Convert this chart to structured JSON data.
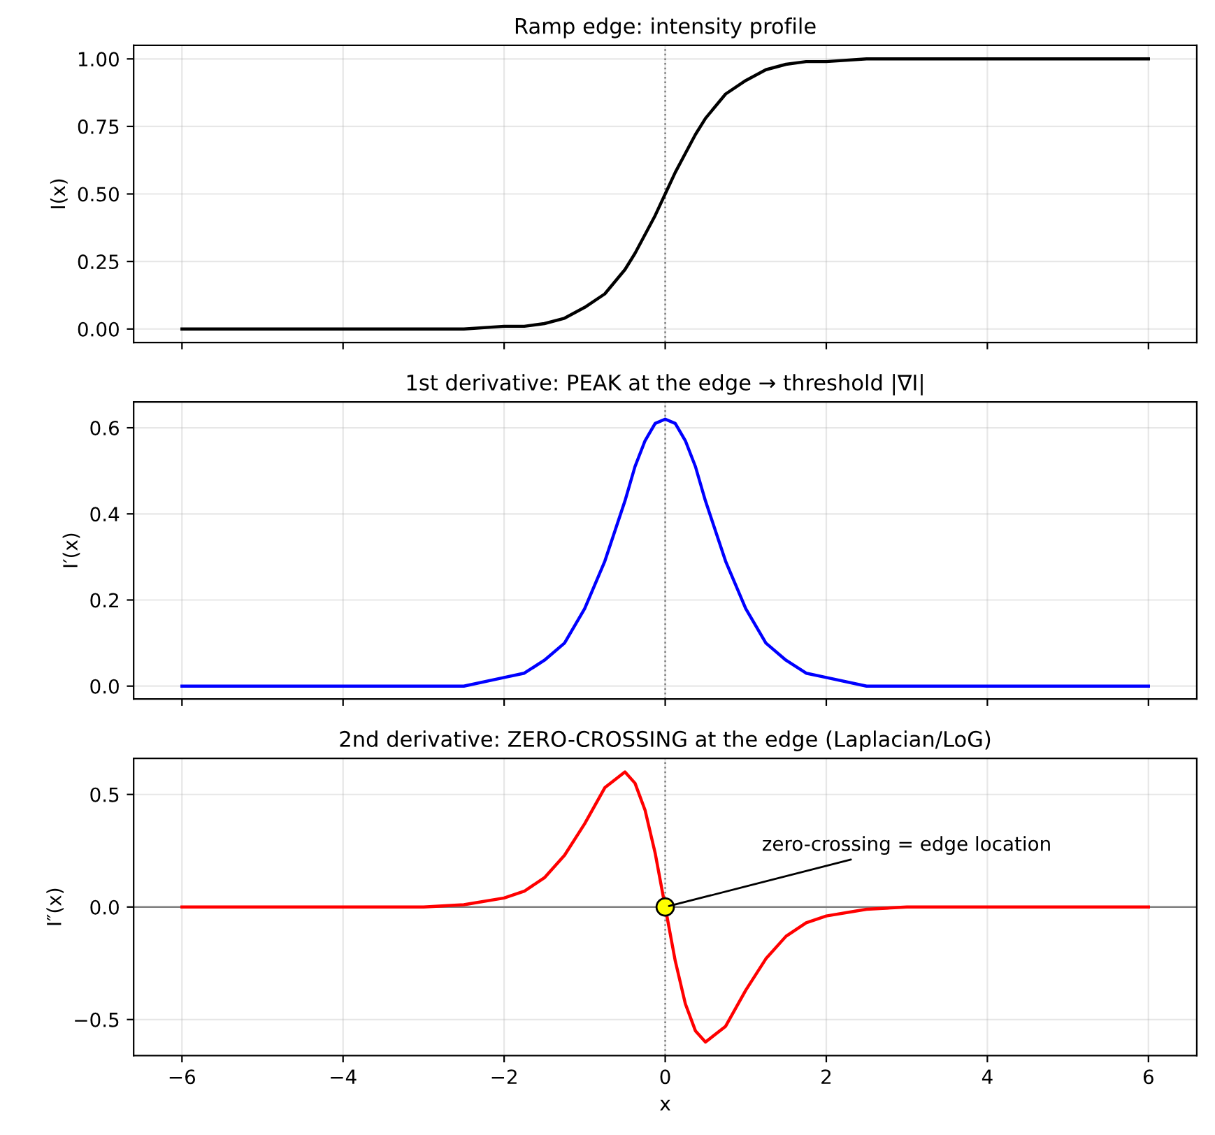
{
  "chart_data": [
    {
      "type": "line",
      "title": "Ramp edge: intensity profile",
      "ylabel": "I(x)",
      "x": [
        -6,
        -5,
        -4,
        -3,
        -2.5,
        -2,
        -1.75,
        -1.5,
        -1.25,
        -1,
        -0.75,
        -0.5,
        -0.375,
        -0.25,
        -0.125,
        0,
        0.125,
        0.25,
        0.375,
        0.5,
        0.75,
        1,
        1.25,
        1.5,
        1.75,
        2,
        2.5,
        3,
        4,
        5,
        6
      ],
      "series": [
        {
          "color": "#000000",
          "values": [
            0,
            0,
            0,
            0,
            0,
            0.01,
            0.01,
            0.02,
            0.04,
            0.08,
            0.13,
            0.22,
            0.28,
            0.35,
            0.42,
            0.5,
            0.58,
            0.65,
            0.72,
            0.78,
            0.87,
            0.92,
            0.96,
            0.98,
            0.99,
            0.99,
            1,
            1,
            1,
            1,
            1
          ]
        }
      ],
      "ref_lines": [
        {
          "axis": "x",
          "value": 0,
          "color": "#808080",
          "line_style": "dotted"
        }
      ],
      "xlim": [
        -6.6,
        6.6
      ],
      "xticks": [
        -6,
        -4,
        -2,
        0,
        2,
        4,
        6
      ],
      "ylim": [
        -0.05,
        1.05
      ],
      "yticks": [
        {
          "value": 0,
          "label": "0.00"
        },
        {
          "value": 0.25,
          "label": "0.25"
        },
        {
          "value": 0.5,
          "label": "0.50"
        },
        {
          "value": 0.75,
          "label": "0.75"
        },
        {
          "value": 1,
          "label": "1.00"
        }
      ],
      "grid": true,
      "tick_labels": "y",
      "marker": "none",
      "line_style": "solid"
    },
    {
      "type": "line",
      "title": "1st derivative: PEAK at the edge → threshold |∇I|",
      "ylabel": "I′(x)",
      "x": [
        -6,
        -5,
        -4,
        -3,
        -2.5,
        -2,
        -1.75,
        -1.5,
        -1.25,
        -1,
        -0.75,
        -0.5,
        -0.375,
        -0.25,
        -0.125,
        0,
        0.125,
        0.25,
        0.375,
        0.5,
        0.75,
        1,
        1.25,
        1.5,
        1.75,
        2,
        2.5,
        3,
        4,
        5,
        6
      ],
      "series": [
        {
          "color": "#0000ff",
          "values": [
            0,
            0,
            0,
            0,
            0,
            0.02,
            0.03,
            0.06,
            0.1,
            0.18,
            0.29,
            0.43,
            0.51,
            0.57,
            0.61,
            0.62,
            0.61,
            0.57,
            0.51,
            0.43,
            0.29,
            0.18,
            0.1,
            0.06,
            0.03,
            0.02,
            0,
            0,
            0,
            0,
            0
          ]
        }
      ],
      "ref_lines": [
        {
          "axis": "x",
          "value": 0,
          "color": "#808080",
          "line_style": "dotted"
        }
      ],
      "xlim": [
        -6.6,
        6.6
      ],
      "xticks": [
        -6,
        -4,
        -2,
        0,
        2,
        4,
        6
      ],
      "ylim": [
        -0.03,
        0.66
      ],
      "yticks": [
        {
          "value": 0,
          "label": "0.0"
        },
        {
          "value": 0.2,
          "label": "0.2"
        },
        {
          "value": 0.4,
          "label": "0.4"
        },
        {
          "value": 0.6,
          "label": "0.6"
        }
      ],
      "grid": true,
      "tick_labels": "y",
      "marker": "none",
      "line_style": "solid"
    },
    {
      "type": "line",
      "title": "2nd derivative: ZERO-CROSSING at the edge (Laplacian/LoG)",
      "ylabel": "I″(x)",
      "xlabel": "x",
      "x": [
        -6,
        -5,
        -4,
        -3,
        -2.5,
        -2,
        -1.75,
        -1.5,
        -1.25,
        -1,
        -0.75,
        -0.5,
        -0.375,
        -0.25,
        -0.125,
        0,
        0.125,
        0.25,
        0.375,
        0.5,
        0.75,
        1,
        1.25,
        1.5,
        1.75,
        2,
        2.5,
        3,
        4,
        5,
        6
      ],
      "series": [
        {
          "color": "#ff0000",
          "values": [
            0,
            0,
            0,
            0,
            0.01,
            0.04,
            0.07,
            0.13,
            0.23,
            0.37,
            0.53,
            0.6,
            0.55,
            0.43,
            0.24,
            0,
            -0.24,
            -0.43,
            -0.55,
            -0.6,
            -0.53,
            -0.37,
            -0.23,
            -0.13,
            -0.07,
            -0.04,
            -0.01,
            0,
            0,
            0,
            0
          ]
        },
        {
          "type": "scatter",
          "x": [
            0
          ],
          "values": [
            0
          ],
          "color": "#ffff00",
          "marker": "circle"
        }
      ],
      "ref_lines": [
        {
          "axis": "x",
          "value": 0,
          "color": "#808080",
          "line_style": "dotted"
        },
        {
          "axis": "y",
          "value": 0,
          "color": "#808080",
          "line_style": "solid"
        }
      ],
      "annotations": [
        {
          "text": "zero-crossing = edge location",
          "x": 0,
          "y": 0
        }
      ],
      "xlim": [
        -6.6,
        6.6
      ],
      "xticks": [
        -6,
        -4,
        -2,
        0,
        2,
        4,
        6
      ],
      "ylim": [
        -0.66,
        0.66
      ],
      "yticks": [
        {
          "value": -0.5,
          "label": "−0.5"
        },
        {
          "value": 0,
          "label": "0.0"
        },
        {
          "value": 0.5,
          "label": "0.5"
        }
      ],
      "grid": true,
      "marker": "none",
      "line_style": "solid"
    }
  ]
}
